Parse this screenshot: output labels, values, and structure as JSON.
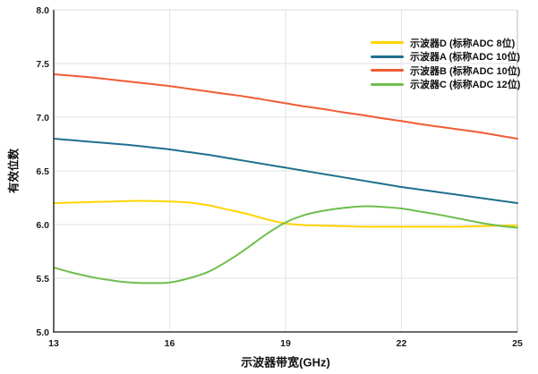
{
  "chart_data": {
    "type": "line",
    "xlabel": "示波器带宽(GHz)",
    "ylabel": "有效位数",
    "xlim": [
      13,
      25
    ],
    "ylim": [
      5.0,
      8.0
    ],
    "x_tick_labels": [
      "13",
      "16",
      "19",
      "22",
      "25"
    ],
    "y_tick_labels": [
      "5.0",
      "5.5",
      "6.0",
      "6.5",
      "7.0",
      "7.5",
      "8.0"
    ],
    "grid": true,
    "legend_position": "top-right",
    "x": [
      13,
      13.5,
      14,
      14.5,
      15,
      15.5,
      16,
      16.5,
      17,
      17.5,
      18,
      18.5,
      19,
      19.5,
      20,
      20.5,
      21,
      21.5,
      22,
      22.5,
      23,
      23.5,
      24,
      24.5,
      25
    ],
    "series": [
      {
        "name": "示波器D (标称ADC 8位)",
        "color": "#ffd400",
        "values": [
          6.2,
          6.205,
          6.21,
          6.215,
          6.22,
          6.22,
          6.215,
          6.205,
          6.18,
          6.14,
          6.1,
          6.05,
          6.01,
          5.995,
          5.99,
          5.985,
          5.98,
          5.98,
          5.98,
          5.98,
          5.98,
          5.98,
          5.985,
          5.99,
          5.99
        ]
      },
      {
        "name": "示波器A (标称ADC 10位)",
        "color": "#1f6f8e",
        "values": [
          6.8,
          6.785,
          6.77,
          6.755,
          6.74,
          6.72,
          6.7,
          6.675,
          6.65,
          6.62,
          6.59,
          6.56,
          6.53,
          6.5,
          6.47,
          6.44,
          6.41,
          6.38,
          6.35,
          6.325,
          6.3,
          6.275,
          6.25,
          6.225,
          6.2
        ]
      },
      {
        "name": "示波器B (标称ADC 10位)",
        "color": "#f05c35",
        "values": [
          7.4,
          7.385,
          7.37,
          7.35,
          7.33,
          7.31,
          7.29,
          7.265,
          7.24,
          7.215,
          7.19,
          7.16,
          7.13,
          7.1,
          7.075,
          7.045,
          7.02,
          6.99,
          6.965,
          6.935,
          6.91,
          6.885,
          6.86,
          6.83,
          6.8
        ]
      },
      {
        "name": "示波器C (标称ADC 12位)",
        "color": "#6fbe4e",
        "values": [
          5.6,
          5.55,
          5.51,
          5.48,
          5.46,
          5.455,
          5.46,
          5.5,
          5.56,
          5.66,
          5.78,
          5.91,
          6.02,
          6.09,
          6.13,
          6.155,
          6.17,
          6.165,
          6.15,
          6.12,
          6.09,
          6.055,
          6.02,
          5.99,
          5.97
        ]
      }
    ]
  },
  "colors": {
    "grid": "#e6e6e6",
    "plot_border": "#c6c6c6",
    "axis": "#3c3c3c",
    "tick_text": "#1a1a1a"
  }
}
